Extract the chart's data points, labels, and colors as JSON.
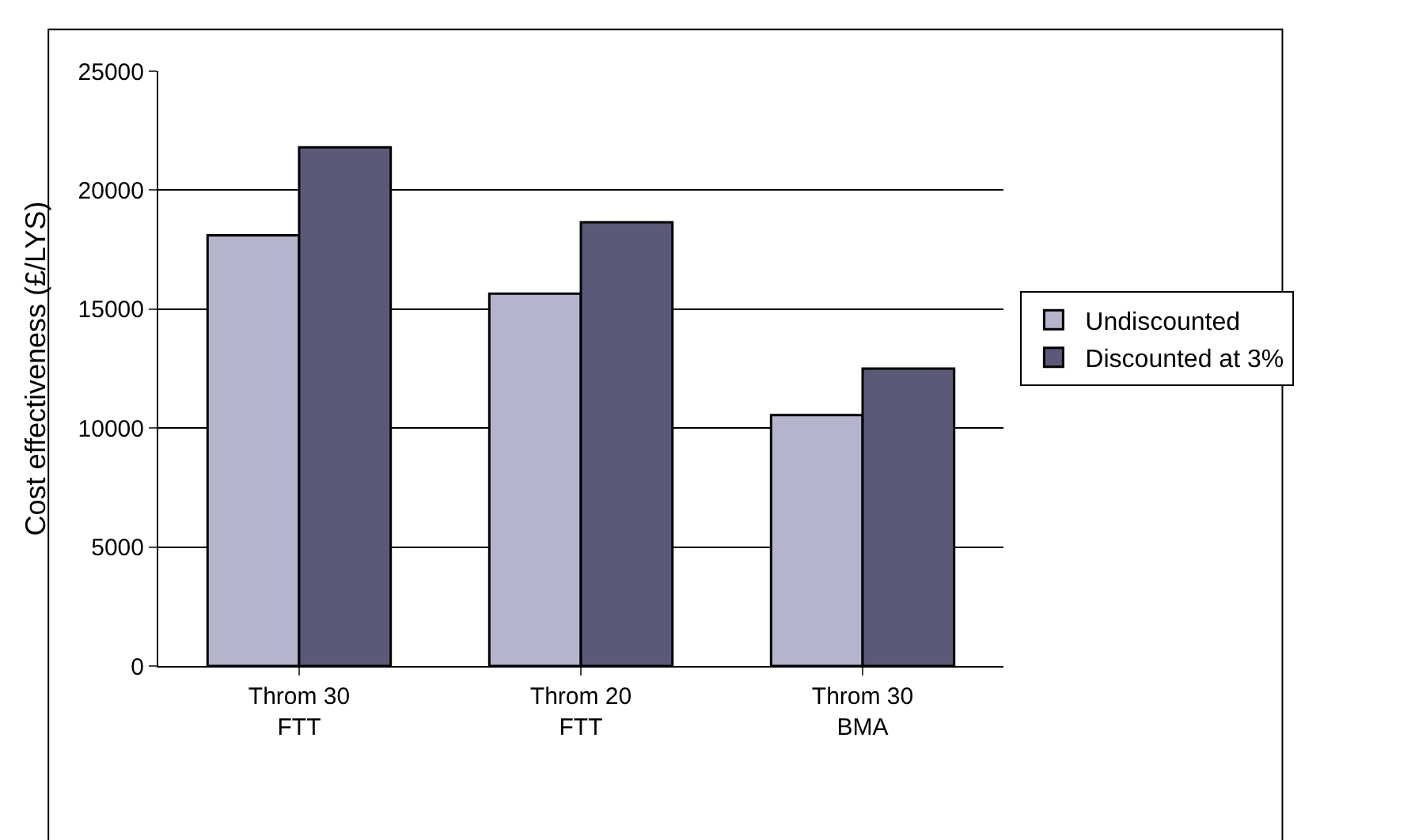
{
  "chart_data": {
    "type": "bar",
    "ylabel": "Cost effectiveness (£/LYS)",
    "categories": [
      "Throm 30\nFTT",
      "Throm 20\nFTT",
      "Throm 30\nBMA"
    ],
    "series": [
      {
        "name": "Undiscounted",
        "color": "#b4b4cc",
        "values": [
          18100,
          15650,
          10550
        ]
      },
      {
        "name": "Discounted at 3%",
        "color": "#5a5a78",
        "values": [
          21800,
          18650,
          12500
        ]
      }
    ],
    "ylim": [
      0,
      25000
    ],
    "yticks": [
      0,
      5000,
      10000,
      15000,
      20000,
      25000
    ],
    "grid": "y",
    "legend": "right"
  }
}
